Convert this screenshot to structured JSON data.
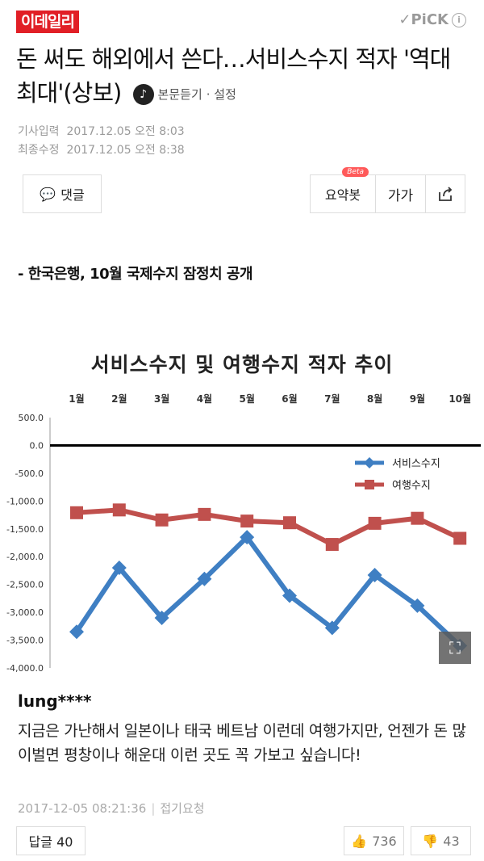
{
  "header": {
    "logo": "이데일리",
    "pick": "✓PiCK",
    "info": "i"
  },
  "article": {
    "title": "돈 써도 해외에서 쓴다…서비스수지 적자 '역대 최대'(상보)",
    "listen_label": "본문듣기",
    "settings_label": "· 설정",
    "input_label": "기사입력",
    "input_time": "2017.12.05 오전 8:03",
    "edit_label": "최종수정",
    "edit_time": "2017.12.05 오전 8:38",
    "subtitle": "- 한국은행, 10월 국제수지 잠정치 공개"
  },
  "toolbar": {
    "comment_label": "댓글",
    "summary_label": "요약봇",
    "beta": "Beta",
    "font_label": "가가",
    "share": "share-icon"
  },
  "chart_title": "서비스수지 및 여행수지 적자 추이",
  "chart_data": {
    "type": "line",
    "title": "서비스수지 및 여행수지 적자 추이",
    "categories": [
      "1월",
      "2월",
      "3월",
      "4월",
      "5월",
      "6월",
      "7월",
      "8월",
      "9월",
      "10월"
    ],
    "yticks": [
      "500.0",
      "0.0",
      "-500.0",
      "-1,000.0",
      "-1,500.0",
      "-2,000.0",
      "-2,500.0",
      "-3,000.0",
      "-3,500.0",
      "-4,000.0"
    ],
    "ylim": [
      -4000,
      500
    ],
    "legend_position": "right",
    "series": [
      {
        "name": "서비스수지",
        "color": "#3f7fc3",
        "values": [
          -3350,
          -2200,
          -3100,
          -2400,
          -1650,
          -2700,
          -3280,
          -2330,
          -2880,
          -3600
        ]
      },
      {
        "name": "여행수지",
        "color": "#c0504d",
        "values": [
          -1210,
          -1160,
          -1340,
          -1240,
          -1360,
          -1390,
          -1780,
          -1400,
          -1310,
          -1670
        ]
      }
    ]
  },
  "comment": {
    "user": "lung****",
    "text": "지금은 가난해서 일본이나 태국 베트남 이런데 여행가지만, 언젠가 돈 많이벌면 평창이나 해운대 이런 곳도 꼭 가보고 싶습니다!",
    "time": "2017-12-05 08:21:36",
    "fold": "접기요청",
    "reply_label": "답글 40",
    "likes": "736",
    "dislikes": "43"
  }
}
